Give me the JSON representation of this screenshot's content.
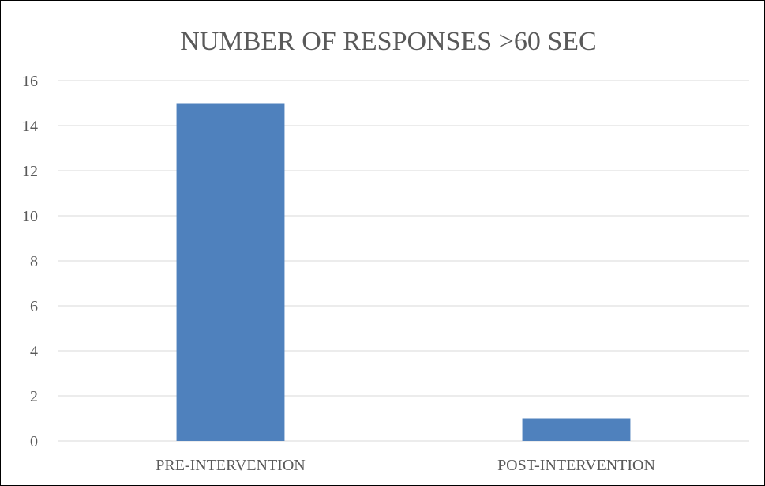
{
  "chart_data": {
    "type": "bar",
    "title": "NUMBER OF RESPONSES >60 SEC",
    "xlabel": "",
    "ylabel": "",
    "categories": [
      "PRE-INTERVENTION",
      "POST-INTERVENTION"
    ],
    "values": [
      15,
      1
    ],
    "ylim": [
      0,
      16
    ],
    "yticks": [
      0,
      2,
      4,
      6,
      8,
      10,
      12,
      14,
      16
    ],
    "grid": true,
    "legend": "none",
    "bar_color": "#4f81bd"
  }
}
